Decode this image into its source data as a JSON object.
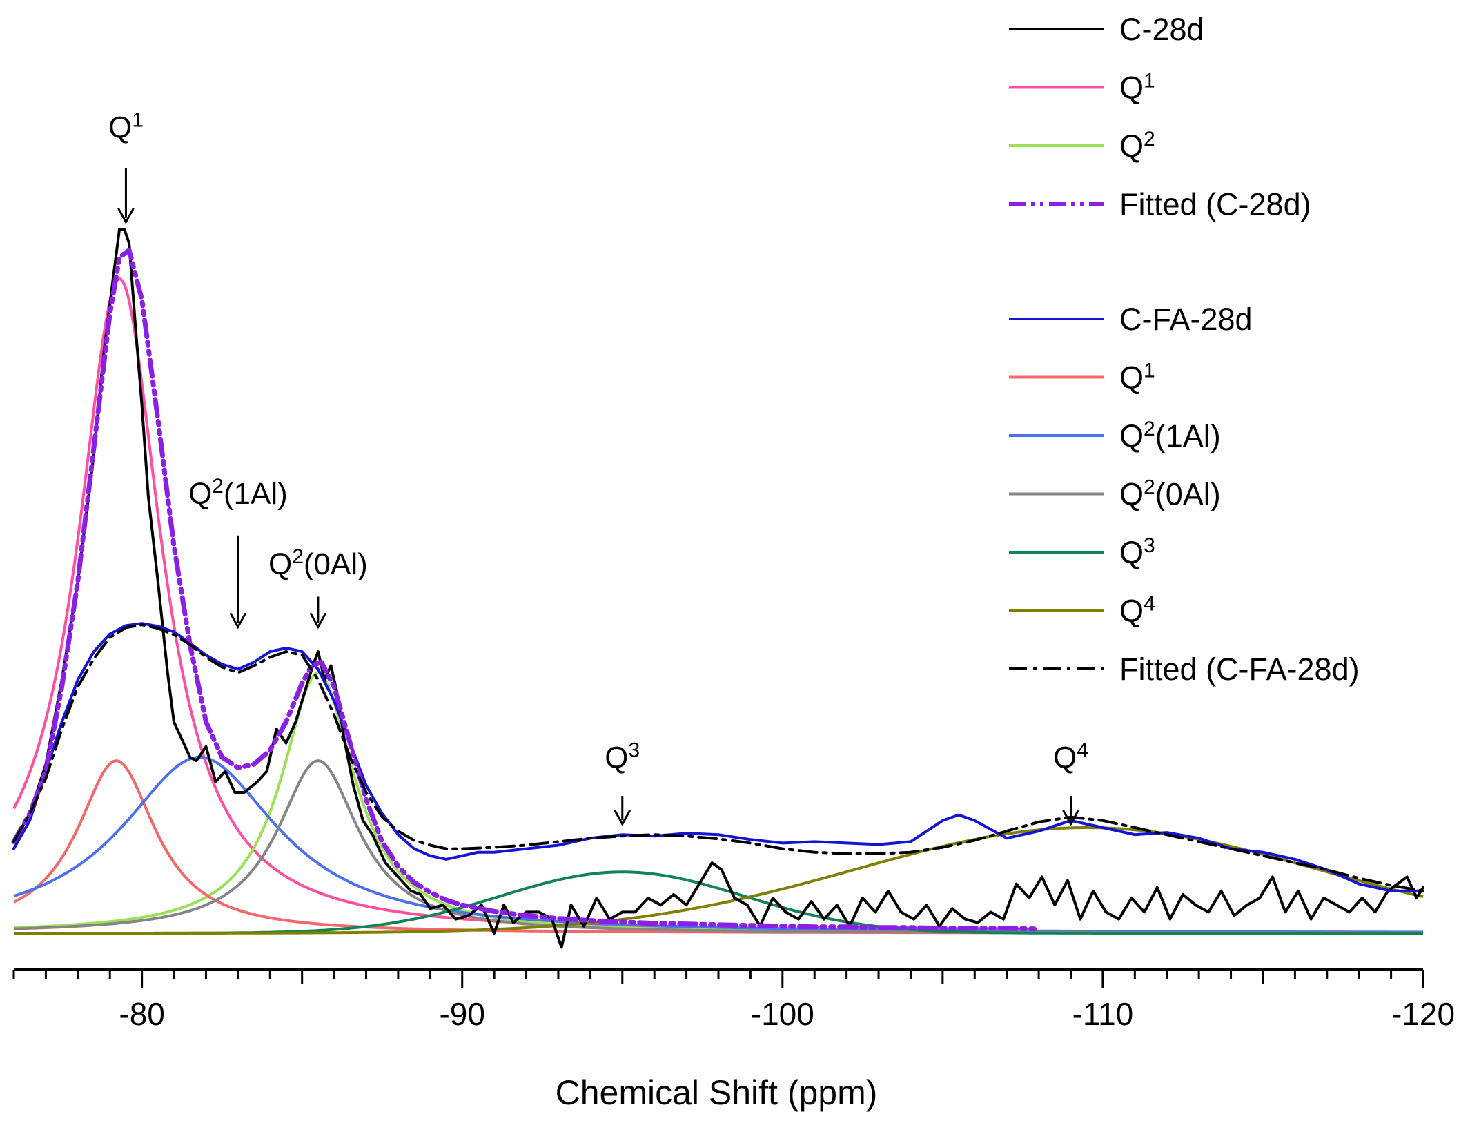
{
  "chart_data": {
    "type": "line",
    "title": "",
    "xlabel": "Chemical Shift (ppm)",
    "ylabel": "",
    "xlim": [
      -76,
      -120
    ],
    "ylim": [
      0,
      1
    ],
    "x_ticks": [
      -80,
      -90,
      -100,
      -110,
      -120
    ],
    "x_tick_labels": [
      "-80",
      "-90",
      "-100",
      "-110",
      "-120"
    ],
    "y_axis_visible": false,
    "legend_position": "top-right",
    "legend_groups": [
      {
        "entries": [
          {
            "base": "C-28d",
            "sup": "",
            "suffix": "",
            "color": "#000000",
            "dash": "solid",
            "width": 4
          },
          {
            "base": "Q",
            "sup": "1",
            "suffix": "",
            "color": "#ff4fa3",
            "dash": "solid",
            "width": 4
          },
          {
            "base": "Q",
            "sup": "2",
            "suffix": "",
            "color": "#9be055",
            "dash": "solid",
            "width": 4
          },
          {
            "base": "Fitted (C-28d)",
            "sup": "",
            "suffix": "",
            "color": "#8a1fe6",
            "dash": "dashdotdot",
            "width": 7
          }
        ]
      },
      {
        "entries": [
          {
            "base": "C-FA-28d",
            "sup": "",
            "suffix": "",
            "color": "#1414d6",
            "dash": "solid",
            "width": 4
          },
          {
            "base": "Q",
            "sup": "1",
            "suffix": "",
            "color": "#f4676b",
            "dash": "solid",
            "width": 4
          },
          {
            "base": "Q",
            "sup": "2",
            "suffix": "(1Al)",
            "color": "#4d70ee",
            "dash": "solid",
            "width": 4
          },
          {
            "base": "Q",
            "sup": "2",
            "suffix": "(0Al)",
            "color": "#858585",
            "dash": "solid",
            "width": 4
          },
          {
            "base": "Q",
            "sup": "3",
            "suffix": "",
            "color": "#118455",
            "dash": "solid",
            "width": 4
          },
          {
            "base": "Q",
            "sup": "4",
            "suffix": "",
            "color": "#808000",
            "dash": "solid",
            "width": 4
          },
          {
            "base": "Fitted (C-FA-28d)",
            "sup": "",
            "suffix": "",
            "color": "#000000",
            "dash": "dashdot",
            "width": 4
          }
        ]
      }
    ],
    "annotations": [
      {
        "base": "Q",
        "sup": "1",
        "suffix": "",
        "x": -79.5,
        "y_text": 1.13,
        "arrow_from": 1.087,
        "arrow_to": 1.01
      },
      {
        "base": "Q",
        "sup": "2",
        "suffix": "(1Al)",
        "x": -83.0,
        "y_text": 0.61,
        "arrow_from": 0.565,
        "arrow_to": 0.435
      },
      {
        "base": "Q",
        "sup": "2",
        "suffix": "(0Al)",
        "x": -85.5,
        "y_text": 0.51,
        "arrow_from": 0.478,
        "arrow_to": 0.435
      },
      {
        "base": "Q",
        "sup": "3",
        "suffix": "",
        "x": -95.0,
        "y_text": 0.235,
        "arrow_from": 0.195,
        "arrow_to": 0.155
      },
      {
        "base": "Q",
        "sup": "4",
        "suffix": "",
        "x": -109.0,
        "y_text": 0.235,
        "arrow_from": 0.195,
        "arrow_to": 0.155
      }
    ],
    "components": [
      {
        "name": "Q1 (C-28d)",
        "color": "#ff4fa3",
        "center": -79.3,
        "height": 0.93,
        "width": 1.6,
        "shape": "lorentzian"
      },
      {
        "name": "Q2 (C-28d)",
        "color": "#9be055",
        "center": -85.5,
        "height": 0.37,
        "width": 1.4,
        "shape": "lorentzian"
      },
      {
        "name": "Q1 (C-FA-28d)",
        "color": "#f4676b",
        "center": -79.2,
        "height": 0.245,
        "width": 1.5,
        "shape": "lorentzian"
      },
      {
        "name": "Q2(1Al)",
        "color": "#4d70ee",
        "center": -81.8,
        "height": 0.25,
        "width": 3.0,
        "shape": "lorentzian"
      },
      {
        "name": "Q2(0Al)",
        "color": "#858585",
        "center": -85.5,
        "height": 0.245,
        "width": 1.55,
        "shape": "lorentzian"
      },
      {
        "name": "Q3",
        "color": "#118455",
        "center": -95.0,
        "height": 0.087,
        "width": 3.8,
        "shape": "gaussian"
      },
      {
        "name": "Q4",
        "color": "#808000",
        "center": -109.5,
        "height": 0.15,
        "width": 7.2,
        "shape": "gaussian"
      }
    ],
    "series": [
      {
        "name": "C-28d",
        "color": "#000000",
        "x": [
          -76.0,
          -76.5,
          -77.0,
          -77.5,
          -78.0,
          -78.5,
          -78.8,
          -79.1,
          -79.3,
          -79.45,
          -79.6,
          -79.8,
          -80.0,
          -80.2,
          -80.5,
          -80.8,
          -81.0,
          -81.3,
          -81.5,
          -81.7,
          -82.0,
          -82.3,
          -82.6,
          -82.9,
          -83.2,
          -83.6,
          -83.9,
          -84.2,
          -84.5,
          -84.8,
          -85.1,
          -85.3,
          -85.5,
          -85.7,
          -85.9,
          -86.1,
          -86.3,
          -86.6,
          -86.9,
          -87.2,
          -87.6,
          -88.0,
          -88.4,
          -88.7,
          -89.0,
          -89.4,
          -89.8,
          -90.2,
          -90.6,
          -91.0,
          -91.3,
          -91.6,
          -92.0,
          -92.4,
          -92.8,
          -93.1,
          -93.4,
          -93.8,
          -94.2,
          -94.6,
          -95.0,
          -95.4,
          -95.8,
          -96.2,
          -96.6,
          -97.0,
          -97.4,
          -97.8,
          -98.1,
          -98.5,
          -98.9,
          -99.3,
          -99.7,
          -100.1,
          -100.5,
          -100.9,
          -101.3,
          -101.7,
          -102.1,
          -102.5,
          -102.9,
          -103.3,
          -103.7,
          -104.1,
          -104.5,
          -104.9,
          -105.3,
          -105.7,
          -106.1,
          -106.5,
          -106.9,
          -107.3,
          -107.7,
          -108.1,
          -108.5,
          -108.9,
          -109.3,
          -109.7,
          -110.1,
          -110.5,
          -110.9,
          -111.3,
          -111.7,
          -112.1,
          -112.5,
          -112.9,
          -113.3,
          -113.7,
          -114.1,
          -114.5,
          -114.9,
          -115.3,
          -115.7,
          -116.1,
          -116.5,
          -116.9,
          -117.3,
          -117.7,
          -118.1,
          -118.5,
          -118.9,
          -119.2,
          -119.5,
          -119.8,
          -120.0
        ],
        "y": [
          0.13,
          0.17,
          0.24,
          0.36,
          0.5,
          0.68,
          0.82,
          0.93,
          1.0,
          1.0,
          0.98,
          0.86,
          0.75,
          0.62,
          0.5,
          0.37,
          0.3,
          0.27,
          0.25,
          0.245,
          0.265,
          0.215,
          0.23,
          0.2,
          0.2,
          0.215,
          0.23,
          0.29,
          0.27,
          0.3,
          0.345,
          0.375,
          0.4,
          0.36,
          0.38,
          0.34,
          0.28,
          0.21,
          0.16,
          0.14,
          0.1,
          0.08,
          0.06,
          0.055,
          0.035,
          0.04,
          0.02,
          0.025,
          0.04,
          0.0,
          0.04,
          0.015,
          0.03,
          0.03,
          0.02,
          -0.02,
          0.04,
          0.01,
          0.05,
          0.02,
          0.03,
          0.03,
          0.05,
          0.04,
          0.055,
          0.04,
          0.07,
          0.1,
          0.09,
          0.05,
          0.04,
          0.01,
          0.05,
          0.03,
          0.02,
          0.045,
          0.02,
          0.04,
          0.01,
          0.05,
          0.03,
          0.06,
          0.03,
          0.02,
          0.04,
          0.01,
          0.035,
          0.02,
          0.015,
          0.03,
          0.02,
          0.07,
          0.05,
          0.08,
          0.04,
          0.075,
          0.02,
          0.06,
          0.03,
          0.02,
          0.05,
          0.03,
          0.065,
          0.02,
          0.055,
          0.04,
          0.03,
          0.06,
          0.025,
          0.04,
          0.05,
          0.08,
          0.03,
          0.06,
          0.02,
          0.05,
          0.04,
          0.03,
          0.05,
          0.03,
          0.06,
          0.07,
          0.08,
          0.05,
          0.065
        ]
      },
      {
        "name": "C-FA-28d",
        "color": "#1414d6",
        "x": [
          -76.0,
          -76.5,
          -77.0,
          -77.5,
          -78.0,
          -78.5,
          -79.0,
          -79.5,
          -80.0,
          -80.5,
          -81.0,
          -81.5,
          -82.0,
          -82.5,
          -83.0,
          -83.5,
          -84.0,
          -84.5,
          -85.0,
          -85.5,
          -86.0,
          -86.5,
          -87.0,
          -87.5,
          -88.0,
          -88.5,
          -89.0,
          -89.5,
          -90.0,
          -90.5,
          -91.0,
          -92.0,
          -93.0,
          -94.0,
          -95.0,
          -96.0,
          -97.0,
          -98.0,
          -99.0,
          -100.0,
          -101.0,
          -102.0,
          -103.0,
          -104.0,
          -105.0,
          -105.5,
          -106.0,
          -107.0,
          -108.0,
          -109.0,
          -110.0,
          -111.0,
          -112.0,
          -113.0,
          -114.0,
          -115.0,
          -116.0,
          -117.0,
          -118.0,
          -119.0,
          -120.0
        ],
        "y": [
          0.12,
          0.16,
          0.23,
          0.3,
          0.36,
          0.4,
          0.425,
          0.437,
          0.44,
          0.436,
          0.428,
          0.412,
          0.395,
          0.382,
          0.375,
          0.385,
          0.4,
          0.405,
          0.4,
          0.375,
          0.33,
          0.27,
          0.21,
          0.17,
          0.14,
          0.12,
          0.11,
          0.105,
          0.11,
          0.115,
          0.115,
          0.12,
          0.125,
          0.135,
          0.14,
          0.138,
          0.142,
          0.14,
          0.133,
          0.128,
          0.13,
          0.128,
          0.126,
          0.13,
          0.16,
          0.168,
          0.16,
          0.135,
          0.145,
          0.16,
          0.15,
          0.14,
          0.143,
          0.135,
          0.12,
          0.115,
          0.105,
          0.09,
          0.07,
          0.06,
          0.06
        ]
      },
      {
        "name": "Fitted (C-28d)",
        "color": "#8a1fe6",
        "x": [
          -76.0,
          -76.5,
          -77.0,
          -77.5,
          -78.0,
          -78.5,
          -79.0,
          -79.3,
          -79.6,
          -80.0,
          -80.5,
          -81.0,
          -81.5,
          -82.0,
          -82.5,
          -83.0,
          -83.5,
          -84.0,
          -84.5,
          -85.0,
          -85.3,
          -85.6,
          -86.0,
          -86.5,
          -87.0,
          -87.5,
          -88.0,
          -88.5,
          -89.0,
          -89.5,
          -90.0,
          -91.0,
          -92.0,
          -93.0,
          -94.0,
          -95.0,
          -96.0,
          -97.0,
          -98.0,
          -99.0,
          -100.0,
          -101.0,
          -102.0,
          -103.0,
          -104.0,
          -105.0,
          -106.0,
          -107.0,
          -108.0
        ],
        "y": [
          0.13,
          0.17,
          0.23,
          0.35,
          0.5,
          0.69,
          0.88,
          0.96,
          0.97,
          0.9,
          0.73,
          0.55,
          0.41,
          0.3,
          0.25,
          0.235,
          0.24,
          0.26,
          0.3,
          0.355,
          0.38,
          0.385,
          0.35,
          0.27,
          0.19,
          0.13,
          0.095,
          0.072,
          0.058,
          0.047,
          0.04,
          0.031,
          0.025,
          0.021,
          0.018,
          0.016,
          0.014,
          0.013,
          0.012,
          0.011,
          0.01,
          0.009,
          0.009,
          0.008,
          0.008,
          0.007,
          0.007,
          0.007,
          0.006
        ]
      },
      {
        "name": "Fitted (C-FA-28d)",
        "color": "#000000",
        "x": [
          -76.0,
          -76.5,
          -77.0,
          -77.5,
          -78.0,
          -78.5,
          -79.0,
          -79.5,
          -80.0,
          -80.5,
          -81.0,
          -81.5,
          -82.0,
          -82.5,
          -83.0,
          -83.5,
          -84.0,
          -84.5,
          -85.0,
          -85.5,
          -86.0,
          -86.5,
          -87.0,
          -87.5,
          -88.0,
          -88.5,
          -89.0,
          -89.5,
          -90.0,
          -91.0,
          -92.0,
          -93.0,
          -94.0,
          -95.0,
          -96.0,
          -97.0,
          -98.0,
          -99.0,
          -100.0,
          -101.0,
          -102.0,
          -103.0,
          -104.0,
          -105.0,
          -106.0,
          -107.0,
          -108.0,
          -109.0,
          -110.0,
          -111.0,
          -112.0,
          -113.0,
          -114.0,
          -115.0,
          -116.0,
          -117.0,
          -118.0,
          -119.0,
          -120.0
        ],
        "y": [
          0.13,
          0.17,
          0.22,
          0.29,
          0.35,
          0.39,
          0.42,
          0.434,
          0.438,
          0.433,
          0.424,
          0.41,
          0.392,
          0.378,
          0.37,
          0.38,
          0.392,
          0.4,
          0.395,
          0.36,
          0.31,
          0.25,
          0.2,
          0.165,
          0.145,
          0.132,
          0.125,
          0.12,
          0.12,
          0.122,
          0.125,
          0.13,
          0.135,
          0.138,
          0.14,
          0.138,
          0.134,
          0.128,
          0.12,
          0.115,
          0.113,
          0.113,
          0.115,
          0.122,
          0.132,
          0.145,
          0.158,
          0.165,
          0.16,
          0.15,
          0.14,
          0.13,
          0.12,
          0.11,
          0.1,
          0.09,
          0.078,
          0.068,
          0.06
        ]
      }
    ]
  }
}
